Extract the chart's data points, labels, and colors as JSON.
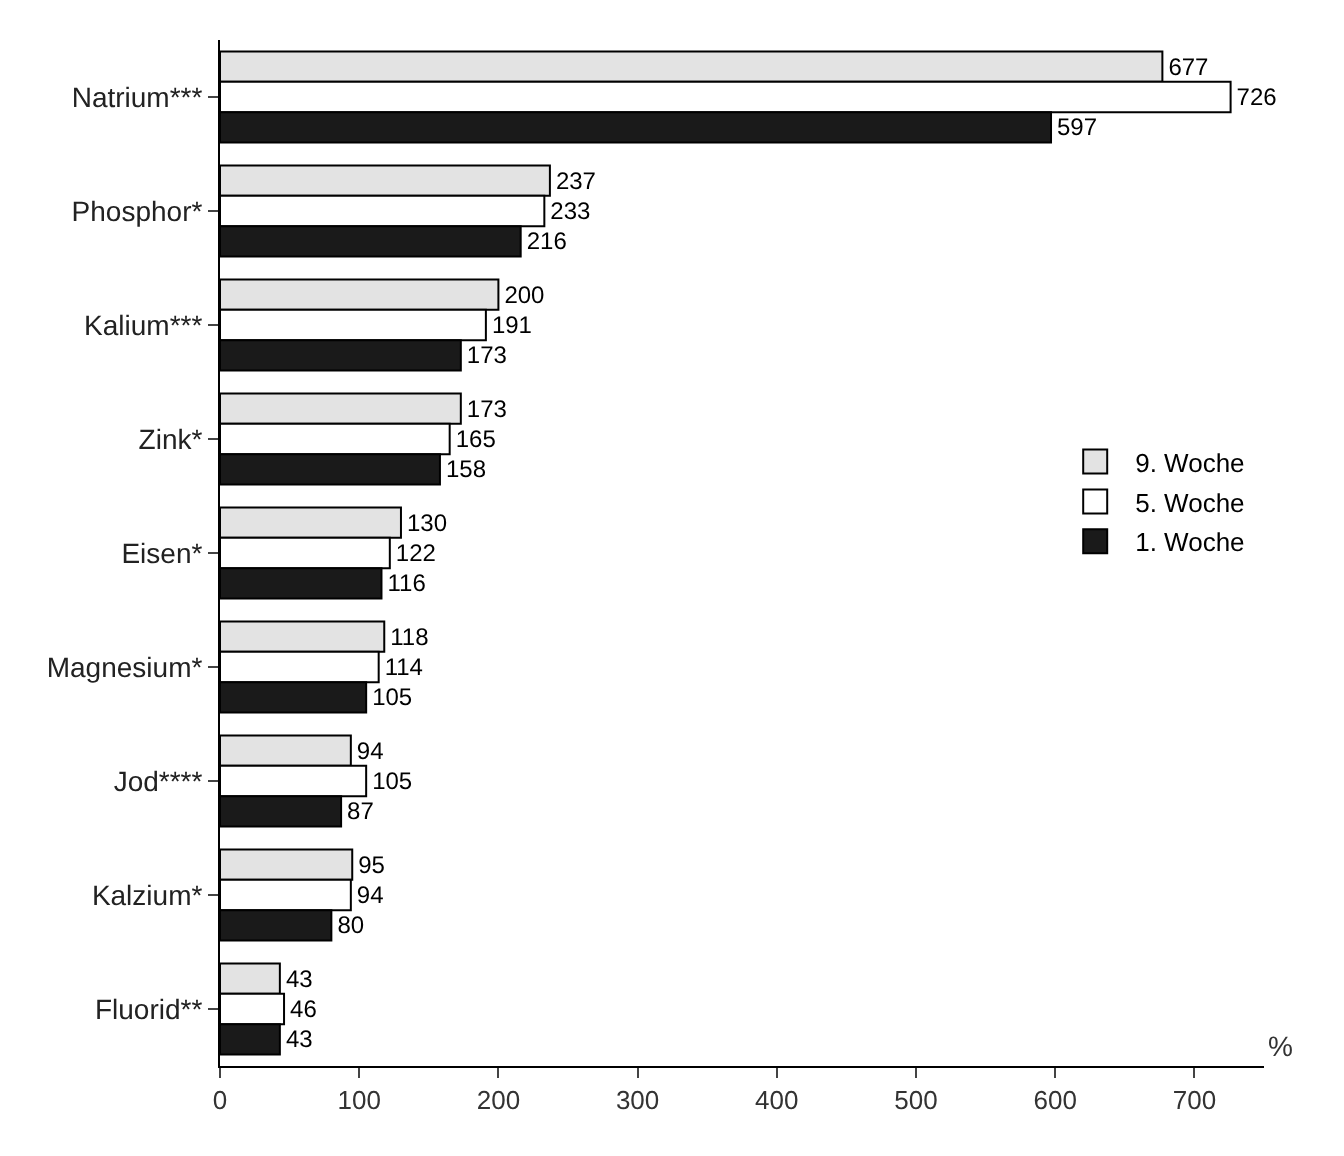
{
  "chart_data": {
    "type": "bar",
    "orientation": "horizontal",
    "xlabel": "%",
    "categories": [
      "Natrium***",
      "Phosphor*",
      "Kalium***",
      "Zink*",
      "Eisen*",
      "Magnesium*",
      "Jod****",
      "Kalzium*",
      "Fluorid**"
    ],
    "series": [
      {
        "name": "9. Woche",
        "color": "#e3e3e3",
        "values": [
          677,
          237,
          200,
          173,
          130,
          118,
          94,
          95,
          43
        ]
      },
      {
        "name": "5. Woche",
        "color": "#ffffff",
        "values": [
          726,
          233,
          191,
          165,
          122,
          114,
          105,
          94,
          46
        ]
      },
      {
        "name": "1. Woche",
        "color": "#1a1a1a",
        "values": [
          597,
          216,
          173,
          158,
          116,
          105,
          87,
          80,
          43
        ]
      }
    ],
    "xlim": [
      0,
      750
    ],
    "xticks": [
      0,
      100,
      200,
      300,
      400,
      500,
      600,
      700
    ],
    "data_labels": true,
    "legend": "right"
  }
}
